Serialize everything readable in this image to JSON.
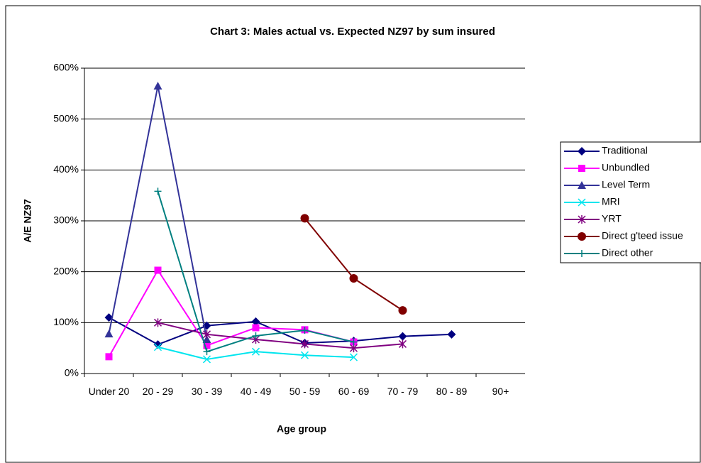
{
  "chart_data": {
    "type": "line",
    "title": "Chart 3: Males actual vs. Expected NZ97 by sum insured",
    "x_label": "Age group",
    "y_label": "A/E NZ97",
    "categories": [
      "Under 20",
      "20 - 29",
      "30 - 39",
      "40 - 49",
      "50 - 59",
      "60 - 69",
      "70 - 79",
      "80 - 89",
      "90+"
    ],
    "ylim": [
      0,
      600
    ],
    "yticks": [
      {
        "value": 0,
        "label": "0%"
      },
      {
        "value": 100,
        "label": "100%"
      },
      {
        "value": 200,
        "label": "200%"
      },
      {
        "value": 300,
        "label": "300%"
      },
      {
        "value": 400,
        "label": "400%"
      },
      {
        "value": 500,
        "label": "500%"
      },
      {
        "value": 600,
        "label": "600%"
      }
    ],
    "grid": true,
    "legend": "right",
    "series": [
      {
        "name": "Traditional",
        "color": "#000080",
        "marker": "diamond",
        "values": [
          110,
          57,
          94,
          102,
          60,
          64,
          73,
          77,
          null
        ]
      },
      {
        "name": "Unbundled",
        "color": "#ff00ff",
        "marker": "square",
        "values": [
          33,
          203,
          55,
          90,
          86,
          62,
          null,
          null,
          null
        ]
      },
      {
        "name": "Level Term",
        "color": "#333399",
        "marker": "triangle",
        "values": [
          78,
          565,
          67,
          null,
          null,
          null,
          null,
          null,
          null
        ]
      },
      {
        "name": "MRI",
        "color": "#00e5ee",
        "marker": "x",
        "values": [
          null,
          52,
          28,
          43,
          36,
          32,
          null,
          null,
          null
        ]
      },
      {
        "name": "YRT",
        "color": "#800080",
        "marker": "star",
        "values": [
          null,
          100,
          77,
          67,
          58,
          50,
          58,
          null,
          null
        ]
      },
      {
        "name": "Direct g'teed issue",
        "color": "#800000",
        "marker": "circle",
        "values": [
          null,
          null,
          null,
          null,
          305,
          187,
          124,
          null,
          null
        ]
      },
      {
        "name": "Direct other",
        "color": "#008080",
        "marker": "plus",
        "values": [
          null,
          358,
          43,
          74,
          85,
          62,
          null,
          null,
          null
        ]
      }
    ]
  }
}
